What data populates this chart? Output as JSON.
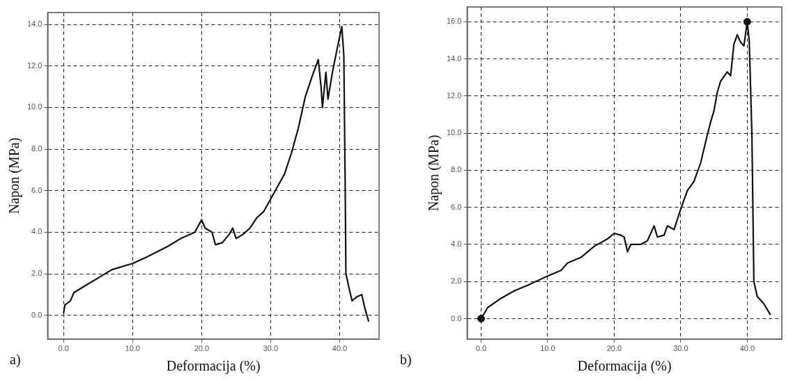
{
  "chart_data": [
    {
      "type": "line",
      "xlabel": "Deformacija (%)",
      "ylabel": "Napon (MPa)",
      "annotations": [
        "a)"
      ],
      "grid": true,
      "legend": false,
      "marker": "none",
      "line_style": "solid",
      "xlim": [
        -2.3,
        45.7
      ],
      "ylim": [
        -1.14,
        14.57
      ],
      "xticks": [
        {
          "value": 0,
          "label": "0.0"
        },
        {
          "value": 10,
          "label": "10.0"
        },
        {
          "value": 20,
          "label": "20.0"
        },
        {
          "value": 30,
          "label": "30.0"
        },
        {
          "value": 40,
          "label": "40.0"
        }
      ],
      "yticks": [
        {
          "value": 0,
          "label": "0.0"
        },
        {
          "value": 2,
          "label": "2.0"
        },
        {
          "value": 4,
          "label": "4.0"
        },
        {
          "value": 6,
          "label": "6.0"
        },
        {
          "value": 8,
          "label": "8.0"
        },
        {
          "value": 10,
          "label": "10.0"
        },
        {
          "value": 12,
          "label": "12.0"
        },
        {
          "value": 14,
          "label": "14.0"
        }
      ],
      "series": [
        {
          "color": "#111111",
          "x": [
            0,
            0.2,
            1,
            1.5,
            3,
            5,
            7,
            10,
            12,
            15,
            17,
            19,
            20,
            20.5,
            21.5,
            22,
            23,
            24,
            24.5,
            25,
            26,
            27,
            28,
            29,
            30,
            31,
            32,
            33,
            34,
            35,
            36,
            36.9,
            37.3,
            37.5,
            38,
            38.3,
            39,
            39.8,
            40.3,
            40.6,
            40.8,
            40.9,
            41.5,
            41.8,
            42.5,
            43.2,
            43.6,
            44.2
          ],
          "values": [
            0.1,
            0.5,
            0.7,
            1.1,
            1.4,
            1.8,
            2.2,
            2.5,
            2.8,
            3.3,
            3.7,
            4.0,
            4.6,
            4.2,
            4.0,
            3.4,
            3.5,
            3.9,
            4.2,
            3.7,
            3.9,
            4.2,
            4.7,
            5.0,
            5.6,
            6.2,
            6.8,
            7.8,
            9.0,
            10.5,
            11.5,
            12.3,
            11.0,
            10.0,
            11.7,
            10.4,
            11.8,
            13.1,
            13.9,
            12.5,
            6.0,
            2.0,
            1.1,
            0.7,
            0.9,
            1.0,
            0.4,
            -0.3
          ]
        }
      ]
    },
    {
      "type": "line",
      "xlabel": "Deformacija (%)",
      "ylabel": "Napon (MPa)",
      "annotations": [
        "b)"
      ],
      "grid": true,
      "legend": false,
      "marker": "none",
      "line_style": "solid",
      "xlim": [
        -2.1,
        45.2
      ],
      "ylim": [
        -1.1,
        16.8
      ],
      "xticks": [
        {
          "value": 0,
          "label": "0.0"
        },
        {
          "value": 10,
          "label": "10.0"
        },
        {
          "value": 20,
          "label": "20.0"
        },
        {
          "value": 30,
          "label": "30.0"
        },
        {
          "value": 40,
          "label": "40.0"
        }
      ],
      "yticks": [
        {
          "value": 0,
          "label": "0.0"
        },
        {
          "value": 2,
          "label": "2.0"
        },
        {
          "value": 4,
          "label": "4.0"
        },
        {
          "value": 6,
          "label": "6.0"
        },
        {
          "value": 8,
          "label": "8.0"
        },
        {
          "value": 10,
          "label": "10.0"
        },
        {
          "value": 12,
          "label": "12.0"
        },
        {
          "value": 14,
          "label": "14.0"
        },
        {
          "value": 16,
          "label": "16.0"
        }
      ],
      "series": [
        {
          "color": "#111111",
          "x": [
            0,
            1,
            3,
            5,
            7,
            10,
            12,
            13,
            15,
            17,
            19,
            20,
            21,
            21.5,
            22,
            22.5,
            24,
            25,
            26,
            26.5,
            27.5,
            28,
            29,
            30,
            31,
            32,
            33,
            34,
            34.5,
            35,
            35.5,
            36,
            37,
            37.5,
            38,
            38.5,
            39,
            39.5,
            40,
            40.3,
            40.7,
            41,
            41.5,
            42.5,
            43,
            43.5
          ],
          "values": [
            0,
            0.6,
            1.1,
            1.5,
            1.8,
            2.3,
            2.6,
            3.0,
            3.3,
            3.9,
            4.3,
            4.6,
            4.5,
            4.4,
            3.6,
            4.0,
            4.0,
            4.2,
            5.0,
            4.4,
            4.5,
            5.0,
            4.8,
            5.9,
            6.9,
            7.4,
            8.4,
            9.9,
            10.6,
            11.2,
            12.2,
            12.8,
            13.3,
            13.1,
            14.8,
            15.3,
            14.9,
            14.7,
            16.0,
            15.0,
            10.0,
            2.0,
            1.2,
            0.8,
            0.5,
            0.2
          ]
        },
        {
          "type": "scatter",
          "color": "#111111",
          "marker": "circle",
          "x": [
            0,
            40
          ],
          "values": [
            0,
            16
          ]
        }
      ]
    }
  ]
}
